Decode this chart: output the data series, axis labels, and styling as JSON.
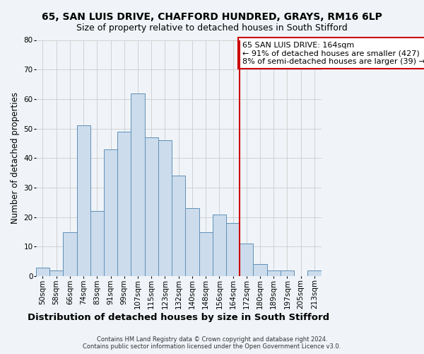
{
  "title": "65, SAN LUIS DRIVE, CHAFFORD HUNDRED, GRAYS, RM16 6LP",
  "subtitle": "Size of property relative to detached houses in South Stifford",
  "xlabel": "Distribution of detached houses by size in South Stifford",
  "ylabel": "Number of detached properties",
  "footer_line1": "Contains HM Land Registry data © Crown copyright and database right 2024.",
  "footer_line2": "Contains public sector information licensed under the Open Government Licence v3.0.",
  "bin_labels": [
    "50sqm",
    "58sqm",
    "66sqm",
    "74sqm",
    "83sqm",
    "91sqm",
    "99sqm",
    "107sqm",
    "115sqm",
    "123sqm",
    "132sqm",
    "140sqm",
    "148sqm",
    "156sqm",
    "164sqm",
    "172sqm",
    "180sqm",
    "189sqm",
    "197sqm",
    "205sqm",
    "213sqm"
  ],
  "bar_heights": [
    3,
    2,
    15,
    51,
    22,
    43,
    49,
    62,
    47,
    46,
    34,
    23,
    15,
    21,
    18,
    11,
    4,
    2,
    2,
    0,
    2
  ],
  "bar_color": "#ccdcec",
  "bar_edge_color": "#6090b8",
  "annotation_text": "65 SAN LUIS DRIVE: 164sqm\n← 91% of detached houses are smaller (427)\n8% of semi-detached houses are larger (39) →",
  "annotation_box_color": "#ffffff",
  "annotation_box_edge": "#cc0000",
  "vline_color": "#cc0000",
  "ylim": [
    0,
    80
  ],
  "yticks": [
    0,
    10,
    20,
    30,
    40,
    50,
    60,
    70,
    80
  ],
  "grid_color": "#cccccc",
  "background_color": "#f0f4f8",
  "title_fontsize": 10,
  "subtitle_fontsize": 9,
  "xlabel_fontsize": 9.5,
  "ylabel_fontsize": 8.5,
  "tick_fontsize": 7.5,
  "annotation_fontsize": 8,
  "footer_fontsize": 6
}
